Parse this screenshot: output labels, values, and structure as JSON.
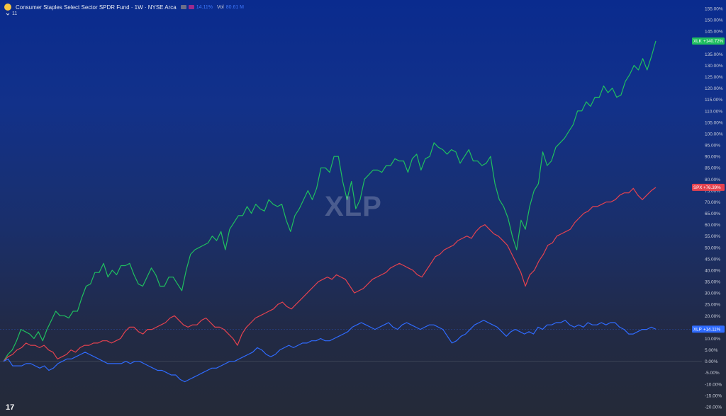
{
  "header": {
    "title": "Consumer Staples Select Sector SPDR Fund · 1W · NYSE Arca",
    "series_chip_1": "14.11%",
    "vol_label": "Vol",
    "vol_value": "80.61 M",
    "sub_count": "11",
    "watermark": "XLP",
    "tradingview_logo": "17"
  },
  "colors": {
    "xlk": "#1fbf5f",
    "spx": "#e5424f",
    "xlp": "#2f6bff",
    "bg_top": "#0a2b8e",
    "bg_bottom": "#242a38"
  },
  "chart_data": {
    "type": "line",
    "y_unit": "%",
    "ylim": [
      -22,
      160
    ],
    "y_ticks": [
      "155.00%",
      "150.00%",
      "145.00%",
      "140.00%",
      "135.00%",
      "130.00%",
      "125.00%",
      "120.00%",
      "115.00%",
      "110.00%",
      "105.00%",
      "100.00%",
      "95.00%",
      "90.00%",
      "85.00%",
      "80.00%",
      "75.00%",
      "70.00%",
      "65.00%",
      "60.00%",
      "55.00%",
      "50.00%",
      "45.00%",
      "40.00%",
      "35.00%",
      "30.00%",
      "25.00%",
      "20.00%",
      "15.00%",
      "10.00%",
      "5.00%",
      "0.00%",
      "-5.00%",
      "-10.00%",
      "-15.00%",
      "-20.00%"
    ],
    "y_tick_values": [
      155,
      150,
      145,
      140,
      135,
      130,
      125,
      120,
      115,
      110,
      105,
      100,
      95,
      90,
      85,
      80,
      75,
      70,
      65,
      60,
      55,
      50,
      45,
      40,
      35,
      30,
      25,
      20,
      15,
      10,
      5,
      0,
      -5,
      -10,
      -15,
      -20
    ],
    "series": [
      {
        "name": "XLK",
        "badge": "+140.72%",
        "last_value": 140.72,
        "color": "#1fbf5f",
        "values": [
          0,
          3,
          5,
          9,
          14,
          13,
          12,
          10,
          13,
          9,
          14,
          18,
          22,
          20,
          20,
          19,
          22,
          22,
          28,
          33,
          34,
          39,
          39,
          43,
          37,
          40,
          38,
          42,
          42,
          43,
          38,
          34,
          33,
          37,
          41,
          38,
          33,
          33,
          37,
          37,
          34,
          31,
          40,
          47,
          49,
          50,
          51,
          52,
          55,
          53,
          57,
          49,
          58,
          61,
          64,
          64,
          68,
          65,
          69,
          67,
          66,
          71,
          69,
          68,
          69,
          62,
          57,
          64,
          67,
          71,
          75,
          71,
          76,
          85,
          85,
          83,
          90,
          90,
          79,
          71,
          79,
          67,
          71,
          80,
          82,
          84,
          84,
          83,
          86,
          86,
          89,
          88,
          88,
          83,
          89,
          91,
          84,
          89,
          90,
          96,
          94,
          93,
          91,
          93,
          92,
          87,
          90,
          93,
          88,
          88,
          86,
          87,
          90,
          78,
          71,
          68,
          63,
          55,
          49,
          62,
          58,
          68,
          75,
          78,
          92,
          86,
          88,
          94,
          96,
          98,
          101,
          104,
          110,
          110,
          114,
          112,
          116,
          116,
          121,
          118,
          120,
          116,
          117,
          123,
          126,
          130,
          128,
          133,
          128,
          134,
          140.72
        ]
      },
      {
        "name": "SPX",
        "badge": "+76.39%",
        "last_value": 76.39,
        "color": "#e5424f",
        "values": [
          0,
          2,
          3,
          5,
          6,
          8,
          7,
          7,
          6,
          7,
          5,
          4,
          1,
          2,
          3,
          5,
          4,
          6,
          7,
          7,
          8,
          8,
          9,
          9,
          8,
          9,
          10,
          13,
          15,
          15,
          13,
          12,
          14,
          14,
          15,
          16,
          17,
          19,
          20,
          18,
          16,
          15,
          16,
          16,
          18,
          19,
          17,
          15,
          15,
          14,
          12,
          10,
          7,
          12,
          15,
          17,
          19,
          20,
          21,
          22,
          23,
          25,
          26,
          24,
          23,
          25,
          27,
          29,
          31,
          33,
          35,
          36,
          37,
          36,
          38,
          37,
          36,
          33,
          30,
          31,
          32,
          34,
          36,
          37,
          38,
          39,
          41,
          42,
          43,
          42,
          41,
          40,
          38,
          37,
          40,
          43,
          46,
          47,
          49,
          50,
          51,
          53,
          54,
          55,
          54,
          57,
          59,
          60,
          58,
          56,
          55,
          53,
          51,
          47,
          43,
          39,
          33,
          38,
          40,
          44,
          47,
          51,
          52,
          55,
          56,
          57,
          58,
          61,
          63,
          65,
          66,
          68,
          68,
          69,
          70,
          70,
          71,
          73,
          74,
          74,
          76,
          73,
          71,
          73,
          75,
          76.39
        ]
      },
      {
        "name": "XLP",
        "badge": "+14.11%",
        "last_value": 14.11,
        "color": "#2f6bff",
        "values": [
          0,
          1,
          -2,
          -2,
          -2,
          -1,
          -1,
          -2,
          -3,
          -2,
          -4,
          -3,
          -1,
          0,
          1,
          1,
          2,
          3,
          4,
          3,
          2,
          1,
          0,
          -1,
          -1,
          -1,
          -1,
          0,
          -1,
          0,
          0,
          -1,
          -2,
          -3,
          -4,
          -4,
          -5,
          -6,
          -6,
          -8,
          -9,
          -8,
          -7,
          -6,
          -5,
          -4,
          -3,
          -3,
          -2,
          -1,
          0,
          0,
          1,
          2,
          3,
          4,
          6,
          5,
          3,
          2,
          3,
          5,
          6,
          7,
          6,
          7,
          8,
          8,
          9,
          9,
          10,
          9,
          9,
          10,
          11,
          12,
          13,
          15,
          16,
          17,
          16,
          15,
          14,
          15,
          16,
          17,
          15,
          14,
          16,
          17,
          16,
          15,
          14,
          15,
          16,
          16,
          15,
          14,
          11,
          8,
          9,
          11,
          12,
          14,
          16,
          17,
          18,
          17,
          16,
          15,
          13,
          11,
          13,
          14,
          13,
          12,
          13,
          12,
          15,
          14,
          16,
          16,
          17,
          17,
          18,
          16,
          15,
          16,
          15,
          17,
          16,
          16,
          17,
          16,
          17,
          17,
          15,
          14,
          12,
          12,
          13,
          14,
          14,
          15,
          14.11
        ]
      }
    ],
    "grid": false,
    "legend": "right-axis-badges"
  }
}
